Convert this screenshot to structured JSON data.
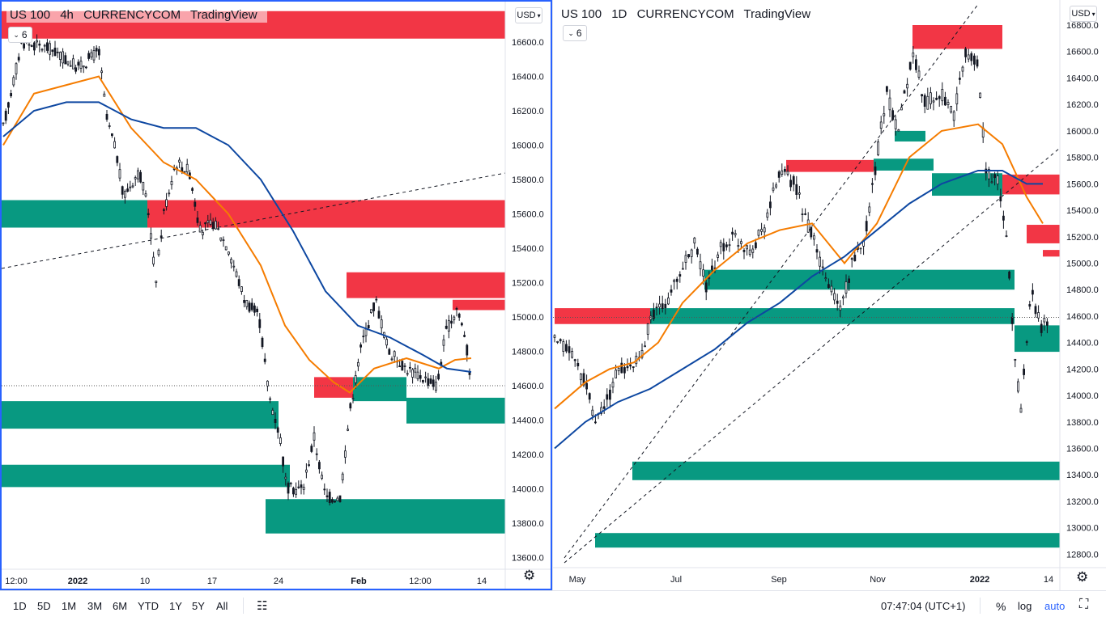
{
  "left_chart": {
    "symbol": "US 100",
    "interval": "4h",
    "source": "CURRENCYCOM",
    "platform": "TradingView",
    "indicator_count": "6",
    "currency": "USD",
    "price_ticks": [
      "16600.0",
      "16400.0",
      "16200.0",
      "16000.0",
      "15800.0",
      "15600.0",
      "15400.0",
      "15200.0",
      "15000.0",
      "14800.0",
      "14600.0",
      "14400.0",
      "14200.0",
      "14000.0",
      "13800.0",
      "13600.0"
    ],
    "time_ticks": [
      "12:00",
      "2022",
      "10",
      "17",
      "24",
      "Feb",
      "12:00",
      "14"
    ],
    "last_price_line": 14600
  },
  "right_chart": {
    "symbol": "US 100",
    "interval": "1D",
    "source": "CURRENCYCOM",
    "platform": "TradingView",
    "indicator_count": "6",
    "currency": "USD",
    "price_ticks": [
      "16800.0",
      "16600.0",
      "16400.0",
      "16200.0",
      "16000.0",
      "15800.0",
      "15600.0",
      "15400.0",
      "15200.0",
      "15000.0",
      "14800.0",
      "14600.0",
      "14400.0",
      "14200.0",
      "14000.0",
      "13800.0",
      "13600.0",
      "13400.0",
      "13200.0",
      "13000.0",
      "12800.0"
    ],
    "time_ticks": [
      "May",
      "Jul",
      "Sep",
      "Nov",
      "2022",
      "14"
    ],
    "last_price_line": 14590
  },
  "bottom_bar": {
    "ranges": [
      "1D",
      "5D",
      "1M",
      "3M",
      "6M",
      "YTD",
      "1Y",
      "5Y",
      "All"
    ],
    "clock": "07:47:04 (UTC+1)",
    "percent": "%",
    "log": "log",
    "auto": "auto"
  },
  "colors": {
    "supply_zone": "#f23645",
    "demand_zone": "#089981",
    "ma_fast": "#f57c00",
    "ma_slow": "#0d47a1",
    "accent": "#2962ff"
  },
  "icons": [
    "chevron-down-icon",
    "gear-icon",
    "compare-icon",
    "fullscreen-icon"
  ]
}
